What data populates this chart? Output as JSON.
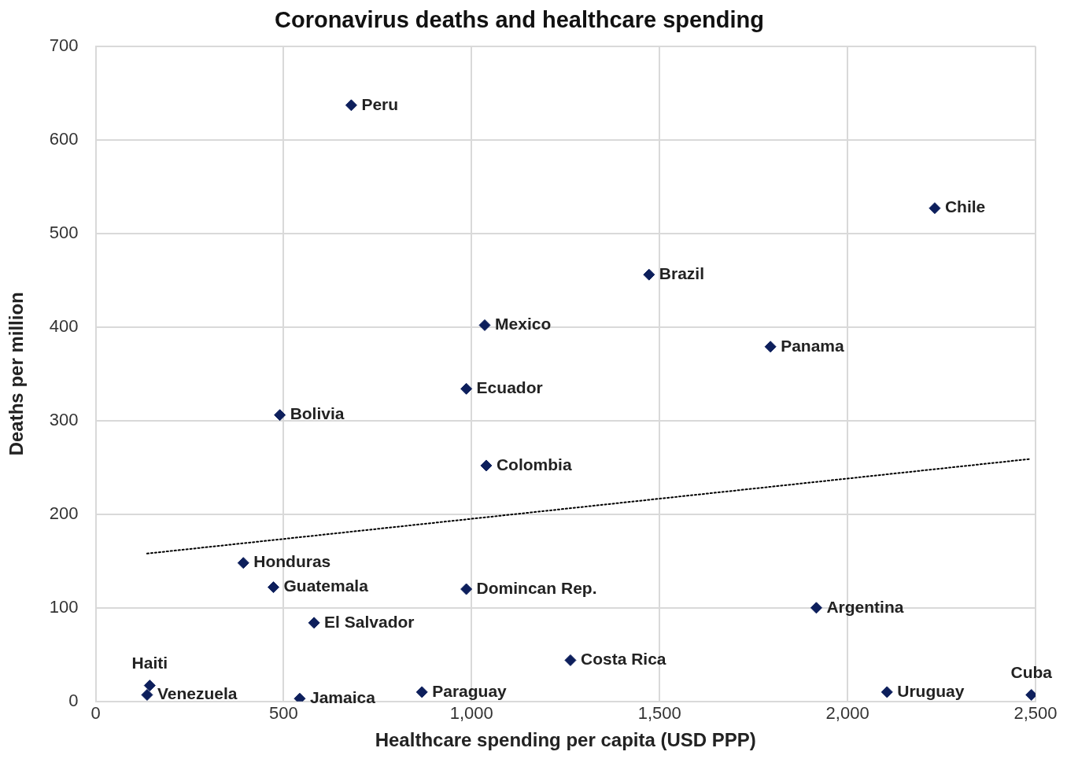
{
  "chart_data": {
    "type": "scatter",
    "title": "Coronavirus deaths and healthcare spending",
    "xlabel": "Healthcare spending per capita (USD PPP)",
    "ylabel": "Deaths per million",
    "xlim": [
      0,
      2500
    ],
    "xticks": [
      0,
      500,
      {
        "value": 1000,
        "label": "1,000"
      },
      {
        "value": 1500,
        "label": "1,500"
      },
      {
        "value": 2000,
        "label": "2,000"
      },
      {
        "value": 2500,
        "label": "2,500"
      }
    ],
    "ylim": [
      0,
      700
    ],
    "yticks": [
      0,
      100,
      200,
      300,
      400,
      500,
      600,
      700
    ],
    "grid": true,
    "legend": false,
    "marker": "diamond",
    "series": [
      {
        "type": "scatter",
        "color": "#0d1f5c",
        "x": [
          680,
          2232,
          1472,
          1035,
          1795,
          986,
          490,
          1039,
          393,
          473,
          986,
          1917,
          581,
          1263,
          144,
          137,
          543,
          868,
          2105,
          2489
        ],
        "values": [
          637,
          527,
          456,
          402,
          379,
          334,
          306,
          252,
          148,
          122,
          120,
          100,
          84,
          44,
          17,
          7,
          3,
          10,
          10,
          7
        ]
      },
      {
        "type": "line",
        "color": "#000000",
        "line_style": "dotted",
        "marker": "none",
        "x": [
          137,
          2485
        ],
        "values": [
          158,
          259
        ]
      }
    ],
    "annotations": [
      {
        "text": "Peru",
        "x": 680,
        "y": 637
      },
      {
        "text": "Chile",
        "x": 2232,
        "y": 527
      },
      {
        "text": "Brazil",
        "x": 1472,
        "y": 456
      },
      {
        "text": "Mexico",
        "x": 1035,
        "y": 402
      },
      {
        "text": "Panama",
        "x": 1795,
        "y": 379
      },
      {
        "text": "Ecuador",
        "x": 986,
        "y": 334
      },
      {
        "text": "Bolivia",
        "x": 490,
        "y": 306
      },
      {
        "text": "Colombia",
        "x": 1039,
        "y": 252
      },
      {
        "text": "Honduras",
        "x": 393,
        "y": 148
      },
      {
        "text": "Guatemala",
        "x": 473,
        "y": 122
      },
      {
        "text": "Domincan Rep.",
        "x": 986,
        "y": 120
      },
      {
        "text": "Argentina",
        "x": 1917,
        "y": 100
      },
      {
        "text": "El Salvador",
        "x": 581,
        "y": 84
      },
      {
        "text": "Costa Rica",
        "x": 1263,
        "y": 44
      },
      {
        "text": "Venezuela",
        "x": 137,
        "y": 7
      },
      {
        "text": "Haiti",
        "x": 144,
        "y": 17
      },
      {
        "text": "Jamaica",
        "x": 543,
        "y": 3
      },
      {
        "text": "Paraguay",
        "x": 868,
        "y": 10
      },
      {
        "text": "Uruguay",
        "x": 2105,
        "y": 10
      },
      {
        "text": "Cuba",
        "x": 2489,
        "y": 7
      }
    ]
  }
}
